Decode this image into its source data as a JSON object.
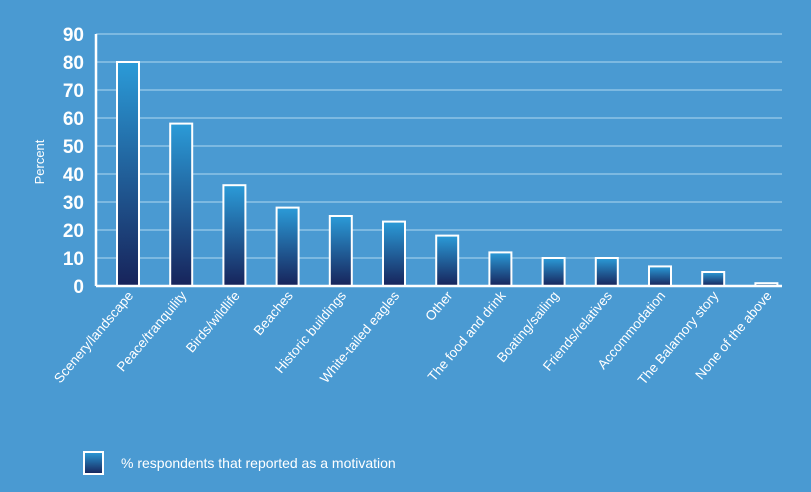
{
  "chart_data": {
    "type": "bar",
    "title": "",
    "xlabel": "",
    "ylabel": "Percent",
    "ylim": [
      0,
      90
    ],
    "yticks": [
      0,
      10,
      20,
      30,
      40,
      50,
      60,
      70,
      80,
      90
    ],
    "grid": true,
    "legend_position": "bottom-left",
    "categories": [
      "Scenery/landscape",
      "Peace/tranquility",
      "Birds/wildlife",
      "Beaches",
      "Historic buildings",
      "White-tailed eagles",
      "Other",
      "The food and drink",
      "Boating/sailing",
      "Friends/relatives",
      "Accommodation",
      "The Balamory story",
      "None of the above"
    ],
    "series": [
      {
        "name": "% respondents that reported as a motivation",
        "values": [
          80,
          58,
          36,
          28,
          25,
          23,
          18,
          12,
          10,
          10,
          7,
          5,
          1
        ]
      }
    ],
    "colors": {
      "background": "#4a9ad2",
      "grid": "#8ec3e6",
      "bar_top": "#2b9bd8",
      "bar_bottom": "#17235a",
      "bar_edge": "#ffffff"
    }
  }
}
